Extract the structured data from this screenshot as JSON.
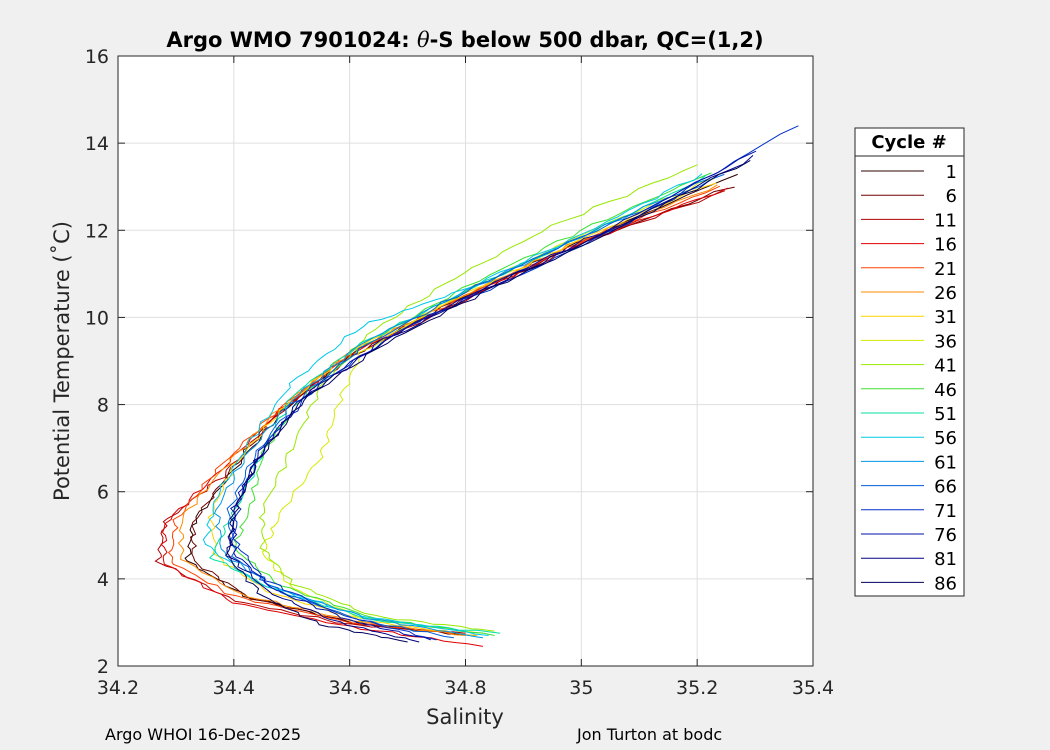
{
  "chart_data": {
    "type": "line",
    "title": {
      "prefix": "Argo WMO 7901024: ",
      "theta": "θ",
      "suffix": "-S below 500 dbar,  QC=(1,2)"
    },
    "xlabel": "Salinity",
    "ylabel": "Potential Temperature (˚C)",
    "xlim": [
      34.2,
      35.4
    ],
    "ylim": [
      2,
      16
    ],
    "xticks": [
      34.2,
      34.4,
      34.6,
      34.8,
      35,
      35.2,
      35.4
    ],
    "xtick_labels": [
      "34.2",
      "34.4",
      "34.6",
      "34.8",
      "35",
      "35.2",
      "35.4"
    ],
    "yticks": [
      2,
      4,
      6,
      8,
      10,
      12,
      14,
      16
    ],
    "ytick_labels": [
      "2",
      "4",
      "6",
      "8",
      "10",
      "12",
      "14",
      "16"
    ],
    "grid": true,
    "legend": {
      "title": "Cycle #",
      "placement": "outside-right"
    },
    "series": [
      {
        "name": "1",
        "color": "#2d0000",
        "points": [
          [
            35.27,
            13.3
          ],
          [
            35.0,
            11.75
          ],
          [
            34.8,
            10.5
          ],
          [
            34.6,
            9.15
          ],
          [
            34.48,
            7.8
          ],
          [
            34.4,
            6.5
          ],
          [
            34.33,
            5.3
          ],
          [
            34.32,
            4.4
          ],
          [
            34.42,
            3.6
          ],
          [
            34.6,
            3.0
          ],
          [
            34.82,
            2.7
          ]
        ]
      },
      {
        "name": "6",
        "color": "#6e0000",
        "points": [
          [
            35.26,
            13.0
          ],
          [
            35.0,
            11.7
          ],
          [
            34.8,
            10.45
          ],
          [
            34.6,
            9.1
          ],
          [
            34.47,
            7.75
          ],
          [
            34.39,
            6.4
          ],
          [
            34.33,
            5.3
          ],
          [
            34.33,
            4.4
          ],
          [
            34.43,
            3.55
          ],
          [
            34.62,
            2.95
          ],
          [
            34.81,
            2.7
          ]
        ]
      },
      {
        "name": "11",
        "color": "#b00000",
        "points": [
          [
            35.25,
            12.9
          ],
          [
            35.0,
            11.7
          ],
          [
            34.8,
            10.4
          ],
          [
            34.6,
            9.1
          ],
          [
            34.47,
            7.7
          ],
          [
            34.38,
            6.35
          ],
          [
            34.28,
            5.3
          ],
          [
            34.27,
            4.4
          ],
          [
            34.4,
            3.5
          ],
          [
            34.6,
            2.95
          ],
          [
            34.8,
            2.75
          ]
        ]
      },
      {
        "name": "16",
        "color": "#e00000",
        "points": [
          [
            35.25,
            12.95
          ],
          [
            35.0,
            11.72
          ],
          [
            34.8,
            10.45
          ],
          [
            34.6,
            9.15
          ],
          [
            34.47,
            7.75
          ],
          [
            34.37,
            6.4
          ],
          [
            34.28,
            5.25
          ],
          [
            34.28,
            4.35
          ],
          [
            34.4,
            3.45
          ],
          [
            34.6,
            2.9
          ],
          [
            34.83,
            2.45
          ]
        ]
      },
      {
        "name": "21",
        "color": "#ff4000",
        "points": [
          [
            35.24,
            13.0
          ],
          [
            35.0,
            11.75
          ],
          [
            34.8,
            10.5
          ],
          [
            34.6,
            9.2
          ],
          [
            34.47,
            7.8
          ],
          [
            34.37,
            6.5
          ],
          [
            34.3,
            5.35
          ],
          [
            34.29,
            4.4
          ],
          [
            34.4,
            3.6
          ],
          [
            34.6,
            3.0
          ],
          [
            34.78,
            2.75
          ]
        ]
      },
      {
        "name": "26",
        "color": "#ff8a00",
        "points": [
          [
            35.24,
            13.05
          ],
          [
            35.0,
            11.78
          ],
          [
            34.8,
            10.52
          ],
          [
            34.6,
            9.2
          ],
          [
            34.47,
            7.8
          ],
          [
            34.38,
            6.5
          ],
          [
            34.31,
            5.4
          ],
          [
            34.31,
            4.45
          ],
          [
            34.41,
            3.65
          ],
          [
            34.6,
            3.05
          ],
          [
            34.8,
            2.7
          ]
        ]
      },
      {
        "name": "31",
        "color": "#ffd400",
        "points": [
          [
            35.23,
            13.1
          ],
          [
            35.0,
            11.8
          ],
          [
            34.8,
            10.55
          ],
          [
            34.6,
            9.22
          ],
          [
            34.48,
            7.85
          ],
          [
            34.4,
            6.6
          ],
          [
            34.36,
            5.5
          ],
          [
            34.37,
            4.5
          ],
          [
            34.46,
            3.7
          ],
          [
            34.62,
            3.05
          ],
          [
            34.82,
            2.7
          ]
        ]
      },
      {
        "name": "36",
        "color": "#d6ea00",
        "points": [
          [
            35.23,
            13.2
          ],
          [
            35.0,
            11.9
          ],
          [
            34.8,
            10.6
          ],
          [
            34.62,
            9.2
          ],
          [
            34.58,
            8.0
          ],
          [
            34.55,
            6.8
          ],
          [
            34.48,
            5.5
          ],
          [
            34.45,
            4.6
          ],
          [
            34.5,
            3.8
          ],
          [
            34.62,
            3.1
          ],
          [
            34.83,
            2.75
          ]
        ]
      },
      {
        "name": "41",
        "color": "#98e800",
        "points": [
          [
            35.2,
            13.5
          ],
          [
            34.95,
            12.1
          ],
          [
            34.78,
            10.9
          ],
          [
            34.63,
            9.6
          ],
          [
            34.55,
            8.4
          ],
          [
            34.5,
            7.0
          ],
          [
            34.45,
            5.6
          ],
          [
            34.45,
            4.7
          ],
          [
            34.5,
            3.9
          ],
          [
            34.64,
            3.15
          ],
          [
            34.85,
            2.8
          ]
        ]
      },
      {
        "name": "46",
        "color": "#3ee030",
        "points": [
          [
            35.22,
            13.3
          ],
          [
            35.0,
            12.0
          ],
          [
            34.8,
            10.7
          ],
          [
            34.63,
            9.4
          ],
          [
            34.52,
            8.2
          ],
          [
            34.45,
            6.9
          ],
          [
            34.43,
            5.7
          ],
          [
            34.4,
            4.7
          ],
          [
            34.48,
            3.85
          ],
          [
            34.64,
            3.1
          ],
          [
            34.85,
            2.7
          ]
        ]
      },
      {
        "name": "51",
        "color": "#00e0a0",
        "points": [
          [
            35.22,
            13.25
          ],
          [
            35.0,
            11.85
          ],
          [
            34.8,
            10.6
          ],
          [
            34.62,
            9.4
          ],
          [
            34.5,
            8.2
          ],
          [
            34.45,
            6.9
          ],
          [
            34.4,
            5.5
          ],
          [
            34.36,
            4.5
          ],
          [
            34.47,
            3.75
          ],
          [
            34.64,
            3.05
          ],
          [
            34.86,
            2.75
          ]
        ]
      },
      {
        "name": "56",
        "color": "#00c8e8",
        "points": [
          [
            35.21,
            13.3
          ],
          [
            35.0,
            11.9
          ],
          [
            34.8,
            10.65
          ],
          [
            34.62,
            9.8
          ],
          [
            34.5,
            8.5
          ],
          [
            34.43,
            7.2
          ],
          [
            34.37,
            5.9
          ],
          [
            34.35,
            4.8
          ],
          [
            34.44,
            3.9
          ],
          [
            34.62,
            3.15
          ],
          [
            34.84,
            2.7
          ]
        ]
      },
      {
        "name": "61",
        "color": "#0096e8",
        "points": [
          [
            35.22,
            13.2
          ],
          [
            35.0,
            11.85
          ],
          [
            34.8,
            10.6
          ],
          [
            34.62,
            9.4
          ],
          [
            34.5,
            8.1
          ],
          [
            34.42,
            6.8
          ],
          [
            34.37,
            5.6
          ],
          [
            34.38,
            4.6
          ],
          [
            34.47,
            3.8
          ],
          [
            34.63,
            3.1
          ],
          [
            34.83,
            2.65
          ]
        ]
      },
      {
        "name": "66",
        "color": "#005fd8",
        "points": [
          [
            35.25,
            13.3
          ],
          [
            35.0,
            11.85
          ],
          [
            34.8,
            10.6
          ],
          [
            34.62,
            9.3
          ],
          [
            34.5,
            8.0
          ],
          [
            34.43,
            6.7
          ],
          [
            34.39,
            5.5
          ],
          [
            34.4,
            4.5
          ],
          [
            34.48,
            3.7
          ],
          [
            34.62,
            3.05
          ],
          [
            34.78,
            2.65
          ]
        ]
      },
      {
        "name": "71",
        "color": "#0030c8",
        "points": [
          [
            35.37,
            14.4
          ],
          [
            35.1,
            12.3
          ],
          [
            34.9,
            11.0
          ],
          [
            34.7,
            9.8
          ],
          [
            34.55,
            8.5
          ],
          [
            34.46,
            7.2
          ],
          [
            34.41,
            5.9
          ],
          [
            34.4,
            4.9
          ],
          [
            34.45,
            4.0
          ],
          [
            34.58,
            3.2
          ],
          [
            34.75,
            2.6
          ]
        ]
      },
      {
        "name": "76",
        "color": "#0010a8",
        "points": [
          [
            35.3,
            13.8
          ],
          [
            35.05,
            12.05
          ],
          [
            34.85,
            10.8
          ],
          [
            34.66,
            9.5
          ],
          [
            34.52,
            8.2
          ],
          [
            34.44,
            6.8
          ],
          [
            34.4,
            5.6
          ],
          [
            34.4,
            4.6
          ],
          [
            34.47,
            3.75
          ],
          [
            34.6,
            3.05
          ],
          [
            34.74,
            2.6
          ]
        ]
      },
      {
        "name": "81",
        "color": "#000085",
        "points": [
          [
            35.3,
            13.7
          ],
          [
            35.05,
            12.0
          ],
          [
            34.85,
            10.75
          ],
          [
            34.66,
            9.45
          ],
          [
            34.52,
            8.15
          ],
          [
            34.44,
            6.75
          ],
          [
            34.4,
            5.55
          ],
          [
            34.39,
            4.55
          ],
          [
            34.46,
            3.7
          ],
          [
            34.58,
            3.0
          ],
          [
            34.72,
            2.55
          ]
        ]
      },
      {
        "name": "86",
        "color": "#000060",
        "points": [
          [
            35.29,
            13.6
          ],
          [
            35.05,
            11.95
          ],
          [
            34.85,
            10.7
          ],
          [
            34.66,
            9.4
          ],
          [
            34.52,
            8.1
          ],
          [
            34.44,
            6.7
          ],
          [
            34.4,
            5.5
          ],
          [
            34.39,
            4.5
          ],
          [
            34.45,
            3.6
          ],
          [
            34.55,
            2.95
          ],
          [
            34.7,
            2.55
          ]
        ]
      }
    ]
  },
  "footer": {
    "left": "Argo WHOI 16-Dec-2025",
    "right": "Jon Turton at bodc"
  }
}
